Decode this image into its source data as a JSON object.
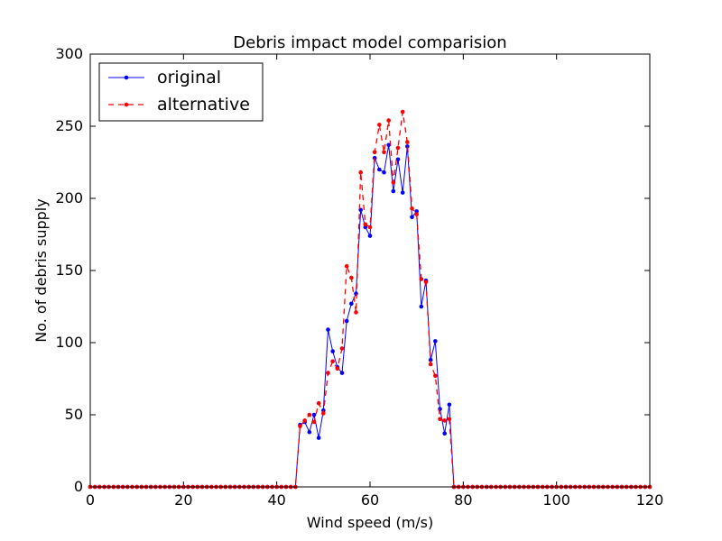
{
  "chart_data": {
    "type": "line",
    "title": "Debris impact model comparision",
    "xlabel": "Wind speed (m/s)",
    "ylabel": "No. of debris supply",
    "xlim": [
      0,
      120
    ],
    "ylim": [
      0,
      300
    ],
    "xticks": [
      0,
      20,
      40,
      60,
      80,
      100,
      120
    ],
    "yticks": [
      0,
      50,
      100,
      150,
      200,
      250,
      300
    ],
    "grid": false,
    "legend_position": "top-left",
    "x": [
      0,
      1,
      2,
      3,
      4,
      5,
      6,
      7,
      8,
      9,
      10,
      11,
      12,
      13,
      14,
      15,
      16,
      17,
      18,
      19,
      20,
      21,
      22,
      23,
      24,
      25,
      26,
      27,
      28,
      29,
      30,
      31,
      32,
      33,
      34,
      35,
      36,
      37,
      38,
      39,
      40,
      41,
      42,
      43,
      44,
      45,
      46,
      47,
      48,
      49,
      50,
      51,
      52,
      53,
      54,
      55,
      56,
      57,
      58,
      59,
      60,
      61,
      62,
      63,
      64,
      65,
      66,
      67,
      68,
      69,
      70,
      71,
      72,
      73,
      74,
      75,
      76,
      77,
      78,
      79,
      80,
      81,
      82,
      83,
      84,
      85,
      86,
      87,
      88,
      89,
      90,
      91,
      92,
      93,
      94,
      95,
      96,
      97,
      98,
      99,
      100,
      101,
      102,
      103,
      104,
      105,
      106,
      107,
      108,
      109,
      110,
      111,
      112,
      113,
      114,
      115,
      116,
      117,
      118,
      119,
      120
    ],
    "series": [
      {
        "name": "original",
        "color": "#0000ff",
        "style": "solid",
        "values": [
          0,
          0,
          0,
          0,
          0,
          0,
          0,
          0,
          0,
          0,
          0,
          0,
          0,
          0,
          0,
          0,
          0,
          0,
          0,
          0,
          0,
          0,
          0,
          0,
          0,
          0,
          0,
          0,
          0,
          0,
          0,
          0,
          0,
          0,
          0,
          0,
          0,
          0,
          0,
          0,
          0,
          0,
          0,
          0,
          0,
          43,
          45,
          38,
          50,
          34,
          53,
          109,
          94,
          83,
          79,
          115,
          127,
          134,
          192,
          180,
          174,
          228,
          220,
          218,
          237,
          205,
          227,
          204,
          236,
          187,
          191,
          125,
          143,
          88,
          101,
          54,
          37,
          57,
          0,
          0,
          0,
          0,
          0,
          0,
          0,
          0,
          0,
          0,
          0,
          0,
          0,
          0,
          0,
          0,
          0,
          0,
          0,
          0,
          0,
          0,
          0,
          0,
          0,
          0,
          0,
          0,
          0,
          0,
          0,
          0,
          0,
          0,
          0,
          0,
          0,
          0,
          0,
          0,
          0,
          0,
          0
        ]
      },
      {
        "name": "alternative",
        "color": "#ff0000",
        "style": "dashed",
        "values": [
          0,
          0,
          0,
          0,
          0,
          0,
          0,
          0,
          0,
          0,
          0,
          0,
          0,
          0,
          0,
          0,
          0,
          0,
          0,
          0,
          0,
          0,
          0,
          0,
          0,
          0,
          0,
          0,
          0,
          0,
          0,
          0,
          0,
          0,
          0,
          0,
          0,
          0,
          0,
          0,
          0,
          0,
          0,
          0,
          0,
          42,
          46,
          50,
          45,
          58,
          51,
          79,
          87,
          82,
          96,
          153,
          145,
          121,
          218,
          182,
          180,
          232,
          251,
          232,
          254,
          211,
          235,
          260,
          239,
          193,
          189,
          144,
          142,
          85,
          77,
          47,
          46,
          47,
          0,
          0,
          0,
          0,
          0,
          0,
          0,
          0,
          0,
          0,
          0,
          0,
          0,
          0,
          0,
          0,
          0,
          0,
          0,
          0,
          0,
          0,
          0,
          0,
          0,
          0,
          0,
          0,
          0,
          0,
          0,
          0,
          0,
          0,
          0,
          0,
          0,
          0,
          0,
          0,
          0,
          0,
          0
        ]
      }
    ]
  }
}
